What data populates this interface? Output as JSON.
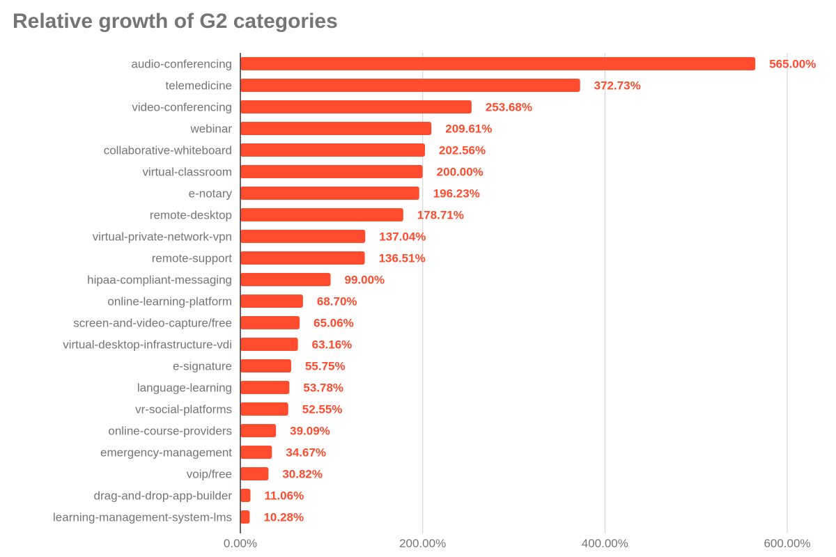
{
  "chart_data": {
    "type": "bar",
    "orientation": "horizontal",
    "title": "Relative growth of G2 categories",
    "xlabel": "",
    "ylabel": "",
    "xlim": [
      0,
      600
    ],
    "x_ticks": [
      0,
      200,
      400,
      600
    ],
    "x_tick_labels": [
      "0.00%",
      "200.00%",
      "400.00%",
      "600.00%"
    ],
    "grid": "vertical",
    "legend": "none",
    "bar_color": "#ff4b2e",
    "label_color": "#ff4b2e",
    "categories": [
      "audio-conferencing",
      "telemedicine",
      "video-conferencing",
      "webinar",
      "collaborative-whiteboard",
      "virtual-classroom",
      "e-notary",
      "remote-desktop",
      "virtual-private-network-vpn",
      "remote-support",
      "hipaa-compliant-messaging",
      "online-learning-platform",
      "screen-and-video-capture/free",
      "virtual-desktop-infrastructure-vdi",
      "e-signature",
      "language-learning",
      "vr-social-platforms",
      "online-course-providers",
      "emergency-management",
      "voip/free",
      "drag-and-drop-app-builder",
      "learning-management-system-lms"
    ],
    "values": [
      565.0,
      372.73,
      253.68,
      209.61,
      202.56,
      200.0,
      196.23,
      178.71,
      137.04,
      136.51,
      99.0,
      68.7,
      65.06,
      63.16,
      55.75,
      53.78,
      52.55,
      39.09,
      34.67,
      30.82,
      11.06,
      10.28
    ],
    "value_labels": [
      "565.00%",
      "372.73%",
      "253.68%",
      "209.61%",
      "202.56%",
      "200.00%",
      "196.23%",
      "178.71%",
      "137.04%",
      "136.51%",
      "99.00%",
      "68.70%",
      "65.06%",
      "63.16%",
      "55.75%",
      "53.78%",
      "52.55%",
      "39.09%",
      "34.67%",
      "30.82%",
      "11.06%",
      "10.28%"
    ]
  }
}
